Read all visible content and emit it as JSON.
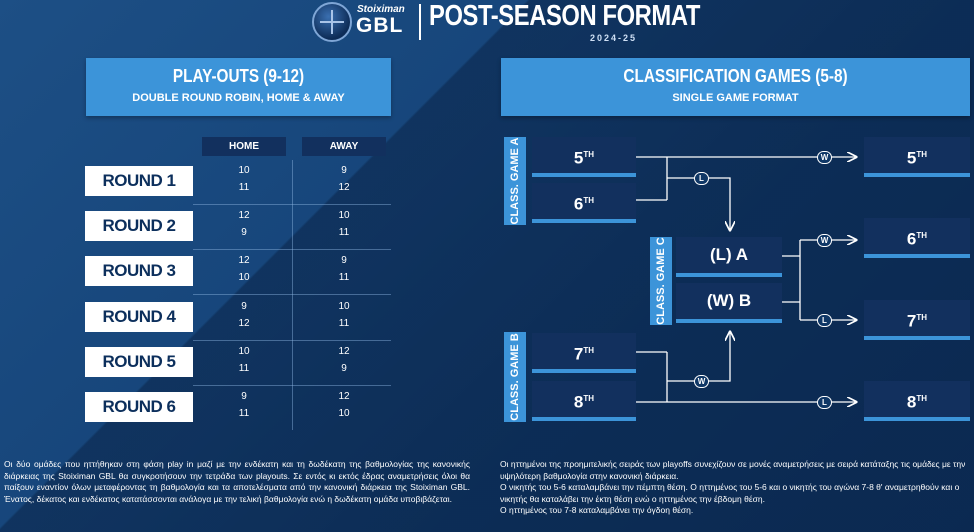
{
  "header": {
    "sponsor": "Stoiximan",
    "brand": "GBL",
    "title": "POST-SEASON FORMAT",
    "season": "2024-25"
  },
  "playouts": {
    "title": "PLAY-OUTS (9-12)",
    "subtitle": "DOUBLE ROUND ROBIN, HOME & AWAY",
    "home_label": "HOME",
    "away_label": "AWAY",
    "rounds": [
      {
        "label": "ROUND 1",
        "home": [
          "10",
          "11"
        ],
        "away": [
          "9",
          "12"
        ]
      },
      {
        "label": "ROUND 2",
        "home": [
          "12",
          "9"
        ],
        "away": [
          "10",
          "11"
        ]
      },
      {
        "label": "ROUND 3",
        "home": [
          "12",
          "10"
        ],
        "away": [
          "9",
          "11"
        ]
      },
      {
        "label": "ROUND 4",
        "home": [
          "9",
          "12"
        ],
        "away": [
          "10",
          "11"
        ]
      },
      {
        "label": "ROUND 5",
        "home": [
          "10",
          "11"
        ],
        "away": [
          "12",
          "9"
        ]
      },
      {
        "label": "ROUND 6",
        "home": [
          "9",
          "11"
        ],
        "away": [
          "12",
          "10"
        ]
      }
    ],
    "description": "Οι δύο ομάδες που ηττήθηκαν στη φάση play in μαζί με την ενδέκατη και τη δωδέκατη της βαθμολογίας της κανονικής διάρκειας της Stoiximan GBL θα συγκροτήσουν την τετράδα των playouts. Σε εντός κι εκτός έδρας αναμετρήσεις όλοι θα παίξουν εναντίον όλων μεταφέροντας τη βαθμολογία και τα αποτελέσματα από την κανονική διάρκεια της Stoiximan GBL. Ένατος, δέκατος και ενδέκατος κατατάσσονται ανάλογα με την τελική βαθμολογία ενώ η δωδέκατη ομάδα υποβιβάζεται."
  },
  "classification": {
    "title": "CLASSIFICATION GAMES (5-8)",
    "subtitle": "SINGLE GAME FORMAT",
    "game_a": "CLASS. GAME A",
    "game_b": "CLASS. GAME B",
    "game_c": "CLASS. GAME C",
    "a_teams": [
      "5",
      "6"
    ],
    "b_teams": [
      "7",
      "8"
    ],
    "c_teams": [
      "(L) A",
      "(W) B"
    ],
    "results": [
      "5",
      "6",
      "7",
      "8"
    ],
    "ordinal": "TH",
    "w": "W",
    "l": "L",
    "description_1": "Οι ηττημένοι της προημιτελικής σειράς των playoffs συνεχίζουν σε μονές αναμετρήσεις με σειρά κατάταξης τις ομάδες με την υψηλότερη βαθμολογία στην κανονική διάρκεια.",
    "description_2": "Ο νικητής του 5-6 καταλαμβάνει την πέμπτη θέση. Ο ηττημένος του 5-6 και ο νικητής του αγώνα 7-8 θ' αναμετρηθούν και ο νικητής θα καταλάβει την έκτη θέση ενώ ο ηττημένος την έβδομη θέση.",
    "description_3": "Ο ηττημένος του 7-8 καταλαμβάνει την όγδοη θέση."
  },
  "colors": {
    "accent": "#3c94d9",
    "navy": "#12305e",
    "background": "#143d6b"
  }
}
